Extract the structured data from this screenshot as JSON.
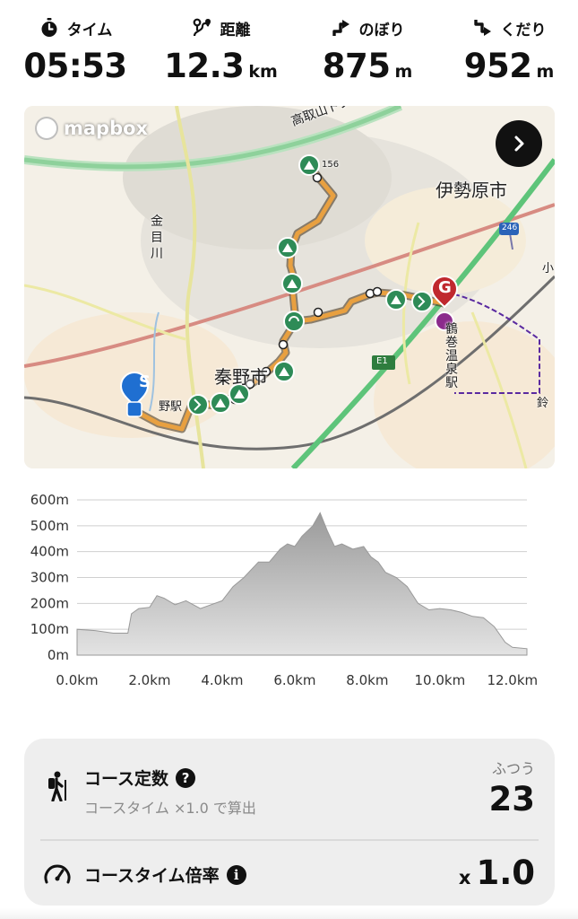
{
  "stats": {
    "time": {
      "label": "タイム",
      "value": "05:53",
      "unit": "",
      "icon": "stopwatch-icon"
    },
    "distance": {
      "label": "距離",
      "value": "12.3",
      "unit": "km",
      "icon": "route-icon"
    },
    "ascent": {
      "label": "のぼり",
      "value": "875",
      "unit": "m",
      "icon": "arrow-up-right-icon"
    },
    "descent": {
      "label": "くだり",
      "value": "952",
      "unit": "m",
      "icon": "arrow-down-right-icon"
    }
  },
  "map": {
    "attribution": "mapbox",
    "labels": {
      "tunnel": "高取山トンネル",
      "city": "伊勢原市",
      "town": "秦野市",
      "station_right": "鶴巻温泉駅",
      "station_left": "野駅",
      "river": "金目川",
      "road_marker": "E1",
      "route_number": "246",
      "road_number": "156",
      "edge_left": "小",
      "edge_right": "鈴"
    },
    "start_marker": "S",
    "goal_marker": "G",
    "colors": {
      "route": "#e8a040",
      "start": "#1f6fd1",
      "goal": "#c0282e",
      "waypoint": "#2e8b57",
      "accent_road": "#5ec47a"
    }
  },
  "elevation": {
    "chart_data": {
      "type": "area",
      "title": "",
      "xlabel": "",
      "ylabel": "",
      "x_unit": "km",
      "y_unit": "m",
      "xlim": [
        0,
        12.4
      ],
      "ylim": [
        0,
        600
      ],
      "x_ticks": [
        "0.0km",
        "2.0km",
        "4.0km",
        "6.0km",
        "8.0km",
        "10.0km",
        "12.0km"
      ],
      "y_ticks": [
        "0m",
        "100m",
        "200m",
        "300m",
        "400m",
        "500m",
        "600m"
      ],
      "grid": true,
      "x": [
        0.0,
        0.5,
        1.0,
        1.4,
        1.5,
        1.7,
        2.0,
        2.2,
        2.4,
        2.7,
        3.0,
        3.4,
        3.6,
        4.0,
        4.3,
        4.6,
        4.8,
        5.0,
        5.3,
        5.6,
        5.8,
        6.0,
        6.2,
        6.5,
        6.7,
        6.9,
        7.1,
        7.3,
        7.6,
        7.9,
        8.1,
        8.3,
        8.5,
        8.8,
        9.1,
        9.4,
        9.7,
        10.0,
        10.3,
        10.6,
        10.9,
        11.2,
        11.5,
        11.8,
        12.0,
        12.4
      ],
      "y": [
        100,
        95,
        85,
        85,
        160,
        180,
        185,
        230,
        220,
        195,
        210,
        180,
        190,
        210,
        265,
        300,
        330,
        360,
        360,
        410,
        430,
        420,
        460,
        500,
        550,
        480,
        420,
        430,
        410,
        420,
        380,
        360,
        320,
        300,
        265,
        200,
        175,
        180,
        175,
        165,
        150,
        145,
        110,
        50,
        30,
        25
      ],
      "series": [
        {
          "name": "",
          "color": "#a9a9a9"
        }
      ]
    }
  },
  "course": {
    "difficulty": {
      "title": "コース定数",
      "subtitle": "コースタイム ×1.0 で算出",
      "level_label": "ふつう",
      "value": "23",
      "icon": "hiker-icon"
    },
    "time_ratio": {
      "title": "コースタイム倍率",
      "prefix": "x",
      "value": "1.0",
      "icon": "speedometer-icon"
    }
  }
}
